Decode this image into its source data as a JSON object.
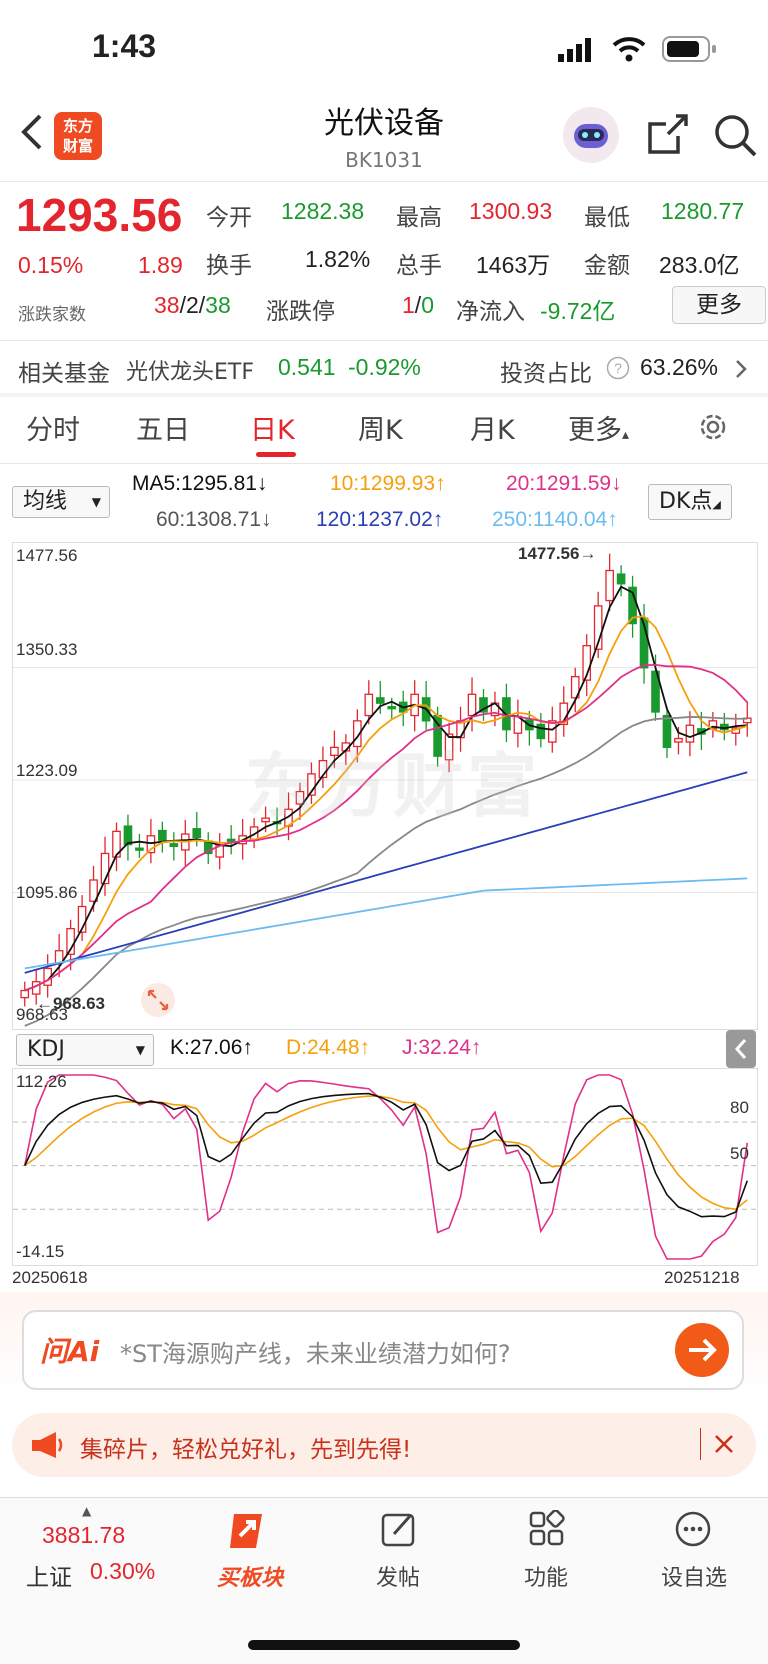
{
  "status_bar": {
    "time": "1:43"
  },
  "header": {
    "title": "光伏设备",
    "code": "BK1031",
    "logo_text_1": "东方",
    "logo_text_2": "财富"
  },
  "quote": {
    "price": "1293.56",
    "change_pct": "0.15%",
    "change": "1.89",
    "open_label": "今开",
    "open": "1282.38",
    "high_label": "最高",
    "high": "1300.93",
    "low_label": "最低",
    "low": "1280.77",
    "turnover_label": "换手",
    "turnover": "1.82%",
    "volume_label": "总手",
    "volume": "1463万",
    "amount_label": "金额",
    "amount": "283.0亿",
    "breadth_label": "涨跌家数",
    "breadth_up": "38",
    "breadth_sep1": "/",
    "breadth_flat": "2",
    "breadth_sep2": "/",
    "breadth_down": "38",
    "limit_label": "涨跌停",
    "limit_up": "1",
    "limit_sep": "/",
    "limit_down": "0",
    "netflow_label": "净流入",
    "netflow": "-9.72亿",
    "more": "更多"
  },
  "fund": {
    "label": "相关基金",
    "name": "光伏龙头ETF",
    "price": "0.541",
    "change": "-0.92%",
    "ratio_label": "投资占比",
    "ratio": "63.26%"
  },
  "tabs": [
    {
      "label": "分时"
    },
    {
      "label": "五日"
    },
    {
      "label": "日K"
    },
    {
      "label": "周K"
    },
    {
      "label": "月K"
    },
    {
      "label": "更多"
    }
  ],
  "indicators": {
    "ma_select": "均线",
    "ma5": "MA5:1295.81↓",
    "ma10": "10:1299.93↑",
    "ma20": "20:1291.59↓",
    "ma60": "60:1308.71↓",
    "ma120": "120:1237.02↑",
    "ma250": "250:1140.04↑",
    "dk": "DK点",
    "kdj_select": "KDJ",
    "k": "K:27.06↑",
    "d": "D:24.48↑",
    "j": "J:32.24↑"
  },
  "colors": {
    "up": "#e3262e",
    "down": "#1a9a2e",
    "ma5": "#111111",
    "ma10": "#f5a00a",
    "ma20": "#e0308a",
    "ma60": "#888888",
    "ma120": "#2a3fb8",
    "ma250": "#6cbcf0"
  },
  "chart_data": {
    "type": "candlestick",
    "y_axis_labels": [
      "1477.56",
      "1350.33",
      "1223.09",
      "1095.86",
      "968.63"
    ],
    "high_marker": "1477.56→",
    "low_marker": "←968.63",
    "x_start": "20250618",
    "x_end": "20251218",
    "kdj_axis_labels": [
      "112.26",
      "80",
      "50",
      "-14.15"
    ],
    "ylim": [
      968.63,
      1477.56
    ],
    "closes": [
      985,
      995,
      1010,
      1030,
      1055,
      1080,
      1110,
      1140,
      1165,
      1150,
      1145,
      1160,
      1155,
      1148,
      1162,
      1158,
      1140,
      1150,
      1155,
      1160,
      1170,
      1180,
      1175,
      1190,
      1210,
      1230,
      1245,
      1260,
      1265,
      1290,
      1320,
      1310,
      1305,
      1300,
      1320,
      1290,
      1250,
      1275,
      1290,
      1320,
      1300,
      1310,
      1280,
      1295,
      1280,
      1270,
      1290,
      1310,
      1340,
      1375,
      1420,
      1460,
      1445,
      1400,
      1350,
      1300,
      1260,
      1270,
      1285,
      1275,
      1290,
      1280,
      1282,
      1293
    ]
  },
  "ai": {
    "brand": "问Ai",
    "prompt": "*ST海源购产线，未来业绩潜力如何?"
  },
  "promo": {
    "text": "集碎片，轻松兑好礼，先到先得!"
  },
  "bottom_nav": {
    "index_value": "3881.78",
    "index_name": "上证",
    "index_change": "0.30%",
    "items": [
      {
        "label": "买板块"
      },
      {
        "label": "发帖"
      },
      {
        "label": "功能"
      },
      {
        "label": "设自选"
      }
    ]
  }
}
